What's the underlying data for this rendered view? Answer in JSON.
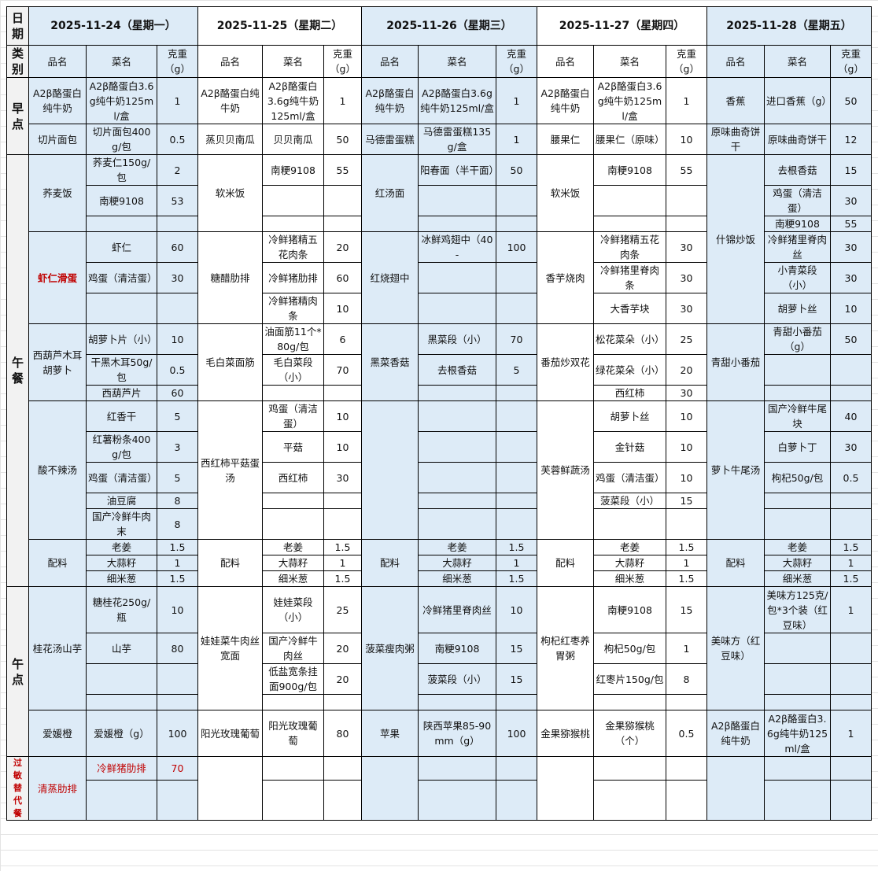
{
  "colors": {
    "alt_day_fill": "#DDEBF7",
    "category_fill": "#F2F2F2",
    "highlight_text": "#C00000"
  },
  "categories": [
    {
      "label": "日期"
    },
    {
      "label": "类别"
    },
    {
      "label": "早点"
    },
    {
      "label": "午餐"
    },
    {
      "label": "午点"
    },
    {
      "label": "过敏替代餐",
      "highlight": true
    }
  ],
  "column_headers": {
    "dish": "品名",
    "item": "菜名",
    "weight": "克重（g）"
  },
  "days": [
    {
      "date": "2025-11-24（星期一）",
      "groups": [
        {
          "dish": "A2β酪蛋白纯牛奶",
          "items": [
            [
              "A2β酪蛋白3.6g纯牛奶125ml/盒",
              "1"
            ]
          ]
        },
        {
          "dish": "切片面包",
          "items": [
            [
              "切片面包400g/包",
              "0.5"
            ]
          ]
        },
        {
          "dish": "荞麦饭",
          "items": [
            [
              "荞麦仁150g/包",
              "2"
            ],
            [
              "南粳9108",
              "53"
            ],
            [
              "",
              ""
            ]
          ]
        },
        {
          "dish": "虾仁滑蛋",
          "highlight": true,
          "items": [
            [
              "虾仁",
              "60"
            ],
            [
              "鸡蛋（清洁蛋）",
              "30"
            ],
            [
              "",
              ""
            ]
          ]
        },
        {
          "dish": "西葫芦木耳胡萝卜",
          "items": [
            [
              "胡萝卜片（小）",
              "10"
            ],
            [
              "干黑木耳50g/包",
              "0.5"
            ],
            [
              "西葫芦片",
              "60"
            ]
          ]
        },
        {
          "dish": "酸不辣汤",
          "items": [
            [
              "红香干",
              "5"
            ],
            [
              "红薯粉条400g/包",
              "3"
            ],
            [
              "鸡蛋（清洁蛋）",
              "5"
            ],
            [
              "油豆腐",
              "8"
            ],
            [
              "国产冷鲜牛肉末",
              "8"
            ]
          ]
        },
        {
          "dish": "配料",
          "items": [
            [
              "老姜",
              "1.5"
            ],
            [
              "大蒜籽",
              "1"
            ],
            [
              "细米葱",
              "1.5"
            ]
          ]
        },
        {
          "dish": "桂花汤山芋",
          "items": [
            [
              "糖桂花250g/瓶",
              "10"
            ],
            [
              "山芋",
              "80"
            ],
            [
              "",
              ""
            ],
            [
              "",
              ""
            ]
          ]
        },
        {
          "dish": "爱媛橙",
          "items": [
            [
              "爱媛橙（g）",
              "100"
            ]
          ]
        },
        {
          "dish": "清蒸肋排",
          "highlight": true,
          "items": [
            [
              "冷鲜猪肋排",
              "70"
            ],
            [
              "",
              ""
            ]
          ]
        }
      ]
    },
    {
      "date": "2025-11-25（星期二）",
      "groups": [
        {
          "dish": "A2β酪蛋白纯牛奶",
          "items": [
            [
              "A2β酪蛋白3.6g纯牛奶125ml/盒",
              "1"
            ]
          ]
        },
        {
          "dish": "蒸贝贝南瓜",
          "items": [
            [
              "贝贝南瓜",
              "50"
            ]
          ]
        },
        {
          "dish": "软米饭",
          "items": [
            [
              "南粳9108",
              "55"
            ],
            [
              "",
              ""
            ],
            [
              "",
              ""
            ]
          ]
        },
        {
          "dish": "糖醋肋排",
          "items": [
            [
              "冷鲜猪精五花肉条",
              "20"
            ],
            [
              "冷鲜猪肋排",
              "60"
            ],
            [
              "冷鲜猪精肉条",
              "10"
            ]
          ]
        },
        {
          "dish": "毛白菜面筋",
          "items": [
            [
              "油面筋11个*80g/包",
              "6"
            ],
            [
              "毛白菜段（小）",
              "70"
            ],
            [
              "",
              ""
            ]
          ]
        },
        {
          "dish": "西红柿平菇蛋汤",
          "items": [
            [
              "鸡蛋（清洁蛋）",
              "10"
            ],
            [
              "平菇",
              "10"
            ],
            [
              "西红柿",
              "30"
            ],
            [
              "",
              ""
            ],
            [
              "",
              ""
            ]
          ]
        },
        {
          "dish": "配料",
          "items": [
            [
              "老姜",
              "1.5"
            ],
            [
              "大蒜籽",
              "1"
            ],
            [
              "细米葱",
              "1.5"
            ]
          ]
        },
        {
          "dish": "娃娃菜牛肉丝宽面",
          "items": [
            [
              "娃娃菜段（小）",
              "25"
            ],
            [
              "国产冷鲜牛肉丝",
              "20"
            ],
            [
              "低盐宽条挂面900g/包",
              "20"
            ],
            [
              "",
              ""
            ]
          ]
        },
        {
          "dish": "阳光玫瑰葡萄",
          "items": [
            [
              "阳光玫瑰葡萄",
              "80"
            ]
          ]
        },
        {
          "dish": "",
          "items": [
            [
              "",
              ""
            ],
            [
              "",
              ""
            ]
          ]
        }
      ]
    },
    {
      "date": "2025-11-26（星期三）",
      "groups": [
        {
          "dish": "A2β酪蛋白纯牛奶",
          "items": [
            [
              "A2β酪蛋白3.6g纯牛奶125ml/盒",
              "1"
            ]
          ]
        },
        {
          "dish": "马德雷蛋糕",
          "items": [
            [
              "马德雷蛋糕135g/盒",
              "1"
            ]
          ]
        },
        {
          "dish": "红汤面",
          "items": [
            [
              "阳春面（半干面）",
              "50"
            ],
            [
              "",
              ""
            ],
            [
              "",
              ""
            ]
          ]
        },
        {
          "dish": "红烧翅中",
          "items": [
            [
              "冰鲜鸡翅中（40-",
              "100"
            ],
            [
              "",
              ""
            ],
            [
              "",
              ""
            ]
          ]
        },
        {
          "dish": "黑菜香菇",
          "items": [
            [
              "黑菜段（小）",
              "70"
            ],
            [
              "去根香菇",
              "5"
            ],
            [
              "",
              ""
            ]
          ]
        },
        {
          "dish": "",
          "items": [
            [
              "",
              ""
            ],
            [
              "",
              ""
            ],
            [
              "",
              ""
            ],
            [
              "",
              ""
            ],
            [
              "",
              ""
            ]
          ]
        },
        {
          "dish": "配料",
          "items": [
            [
              "老姜",
              "1.5"
            ],
            [
              "大蒜籽",
              "1"
            ],
            [
              "细米葱",
              "1.5"
            ]
          ]
        },
        {
          "dish": "菠菜瘦肉粥",
          "items": [
            [
              "冷鲜猪里脊肉丝",
              "10"
            ],
            [
              "南粳9108",
              "15"
            ],
            [
              "菠菜段（小）",
              "15"
            ],
            [
              "",
              ""
            ]
          ]
        },
        {
          "dish": "苹果",
          "items": [
            [
              "陕西苹果85-90mm（g）",
              "100"
            ]
          ]
        },
        {
          "dish": "",
          "items": [
            [
              "",
              ""
            ],
            [
              "",
              ""
            ]
          ]
        }
      ]
    },
    {
      "date": "2025-11-27（星期四）",
      "groups": [
        {
          "dish": "A2β酪蛋白纯牛奶",
          "items": [
            [
              "A2β酪蛋白3.6g纯牛奶125ml/盒",
              "1"
            ]
          ]
        },
        {
          "dish": "腰果仁",
          "items": [
            [
              "腰果仁（原味）",
              "10"
            ]
          ]
        },
        {
          "dish": "软米饭",
          "items": [
            [
              "南粳9108",
              "55"
            ],
            [
              "",
              ""
            ],
            [
              "",
              ""
            ]
          ]
        },
        {
          "dish": "香芋烧肉",
          "items": [
            [
              "冷鲜猪精五花肉条",
              "30"
            ],
            [
              "冷鲜猪里脊肉条",
              "30"
            ],
            [
              "大香芋块",
              "30"
            ]
          ]
        },
        {
          "dish": "番茄炒双花",
          "items": [
            [
              "松花菜朵（小）",
              "25"
            ],
            [
              "绿花菜朵（小）",
              "20"
            ],
            [
              "西红柿",
              "30"
            ]
          ]
        },
        {
          "dish": "芙蓉鲜蔬汤",
          "items": [
            [
              "胡萝卜丝",
              "10"
            ],
            [
              "金针菇",
              "10"
            ],
            [
              "鸡蛋（清洁蛋）",
              "10"
            ],
            [
              "菠菜段（小）",
              "15"
            ],
            [
              "",
              ""
            ]
          ]
        },
        {
          "dish": "配料",
          "items": [
            [
              "老姜",
              "1.5"
            ],
            [
              "大蒜籽",
              "1"
            ],
            [
              "细米葱",
              "1.5"
            ]
          ]
        },
        {
          "dish": "枸杞红枣养胃粥",
          "items": [
            [
              "南粳9108",
              "15"
            ],
            [
              "枸杞50g/包",
              "1"
            ],
            [
              "红枣片150g/包",
              "8"
            ],
            [
              "",
              ""
            ]
          ]
        },
        {
          "dish": "金果猕猴桃",
          "items": [
            [
              "金果猕猴桃（个）",
              "0.5"
            ]
          ]
        },
        {
          "dish": "",
          "items": [
            [
              "",
              ""
            ],
            [
              "",
              ""
            ]
          ]
        }
      ]
    },
    {
      "date": "2025-11-28（星期五）",
      "groups": [
        {
          "dish": "香蕉",
          "items": [
            [
              "进口香蕉（g）",
              "50"
            ]
          ]
        },
        {
          "dish": "原味曲奇饼干",
          "items": [
            [
              "原味曲奇饼干",
              "12"
            ]
          ]
        },
        {
          "dish": "什锦炒饭",
          "items": [
            [
              "去根香菇",
              "15"
            ],
            [
              "鸡蛋（清洁蛋）",
              "30"
            ],
            [
              "南粳9108",
              "55"
            ],
            [
              "冷鲜猪里脊肉丝",
              "30"
            ],
            [
              "小青菜段（小）",
              "30"
            ],
            [
              "胡萝卜丝",
              "10"
            ]
          ]
        },
        {
          "dish": "青甜小番茄",
          "items": [
            [
              "青甜小番茄（g）",
              "50"
            ],
            [
              "",
              ""
            ],
            [
              "",
              ""
            ]
          ]
        },
        {
          "dish": "萝卜牛尾汤",
          "items": [
            [
              "国产冷鲜牛尾块",
              "40"
            ],
            [
              "白萝卜丁",
              "30"
            ],
            [
              "枸杞50g/包",
              "0.5"
            ],
            [
              "",
              ""
            ],
            [
              "",
              ""
            ]
          ]
        },
        {
          "dish": "配料",
          "items": [
            [
              "老姜",
              "1.5"
            ],
            [
              "大蒜籽",
              "1"
            ],
            [
              "细米葱",
              "1.5"
            ]
          ]
        },
        {
          "dish": "美味方（红豆味）",
          "items": [
            [
              "美味方125克/包*3个装（红豆味）",
              "1"
            ],
            [
              "",
              ""
            ],
            [
              "",
              ""
            ],
            [
              "",
              ""
            ]
          ]
        },
        {
          "dish": "A2β酪蛋白纯牛奶",
          "items": [
            [
              "A2β酪蛋白3.6g纯牛奶125ml/盒",
              "1"
            ]
          ]
        },
        {
          "dish": "",
          "items": [
            [
              "",
              ""
            ],
            [
              "",
              ""
            ]
          ]
        }
      ]
    }
  ]
}
